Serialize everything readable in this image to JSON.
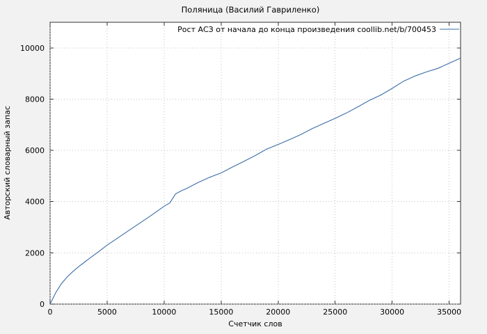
{
  "page": {
    "background": "#f2f2f2",
    "plot_background": "#ffffff"
  },
  "chart_data": {
    "type": "line",
    "title": "Поляница (Василий Гавриленко)",
    "legend": {
      "label": "Рост АСЗ от начала до конца произведения coollib.net/b/700453",
      "position": "top-right"
    },
    "xlabel": "Счетчик слов",
    "ylabel": "Авторский словарный запас",
    "xlim": [
      0,
      36000
    ],
    "ylim": [
      0,
      11000
    ],
    "xticks": [
      0,
      5000,
      10000,
      15000,
      20000,
      25000,
      30000,
      35000
    ],
    "yticks": [
      0,
      2000,
      4000,
      6000,
      8000,
      10000
    ],
    "grid": true,
    "line_color": "#3b6ca8",
    "series": [
      {
        "name": "Рост АСЗ от начала до конца произведения coollib.net/b/700453",
        "x": [
          0,
          500,
          1000,
          1500,
          2000,
          2500,
          3000,
          3500,
          4000,
          4500,
          5000,
          6000,
          7000,
          8000,
          9000,
          10000,
          10500,
          11000,
          11500,
          12000,
          13000,
          14000,
          15000,
          16000,
          17000,
          18000,
          19000,
          20000,
          21000,
          22000,
          23000,
          24000,
          25000,
          26000,
          27000,
          28000,
          29000,
          30000,
          31000,
          32000,
          33000,
          34000,
          35000,
          36000
        ],
        "y": [
          0,
          450,
          800,
          1060,
          1270,
          1460,
          1630,
          1800,
          1960,
          2130,
          2300,
          2600,
          2900,
          3200,
          3500,
          3820,
          3950,
          4300,
          4420,
          4520,
          4750,
          4950,
          5120,
          5350,
          5570,
          5800,
          6050,
          6230,
          6420,
          6620,
          6850,
          7050,
          7250,
          7460,
          7700,
          7950,
          8160,
          8420,
          8700,
          8900,
          9060,
          9200,
          9400,
          9600
        ]
      }
    ]
  }
}
